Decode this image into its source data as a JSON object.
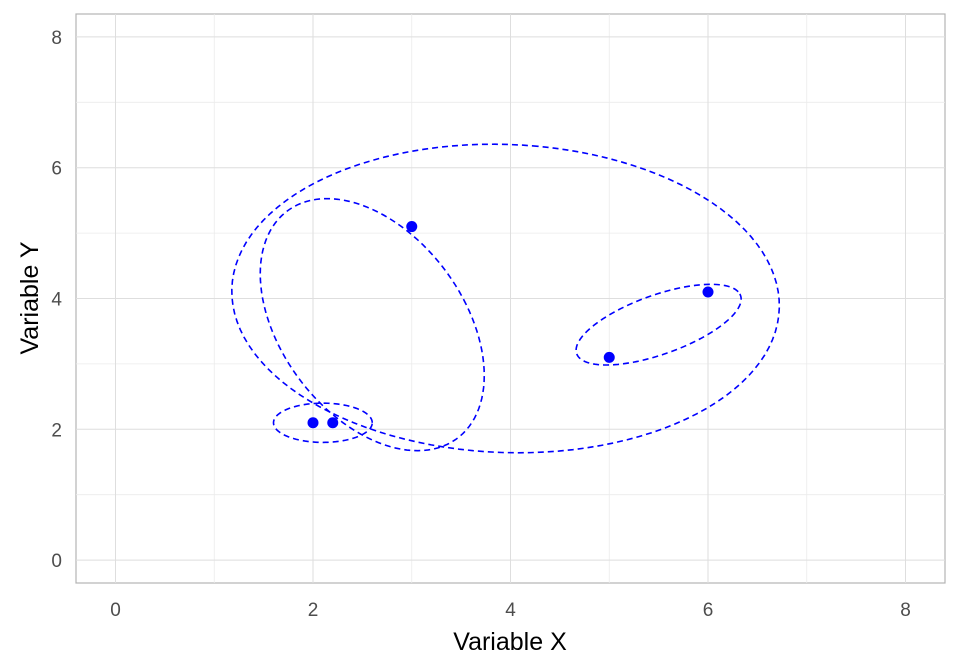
{
  "chart_data": {
    "type": "scatter",
    "title": "",
    "xlabel": "Variable X",
    "ylabel": "Variable Y",
    "xlim": [
      -0.4,
      8.4
    ],
    "ylim": [
      -0.35,
      8.35
    ],
    "xticks": [
      0,
      2,
      4,
      6,
      8
    ],
    "yticks": [
      0,
      2,
      4,
      6,
      8
    ],
    "x_tick_labels": [
      "0",
      "2",
      "4",
      "6",
      "8"
    ],
    "y_tick_labels": [
      "0",
      "2",
      "4",
      "6",
      "8"
    ],
    "grid": true,
    "legend": "none",
    "point_color": "#0000ff",
    "ellipse_color": "#0000ff",
    "ellipse_style": "dashed",
    "points": [
      {
        "x": 2.0,
        "y": 2.1
      },
      {
        "x": 2.2,
        "y": 2.1
      },
      {
        "x": 3.0,
        "y": 5.1
      },
      {
        "x": 5.0,
        "y": 3.1
      },
      {
        "x": 6.0,
        "y": 4.1
      }
    ],
    "ellipses": [
      {
        "cx": 2.1,
        "cy": 2.1,
        "rx": 0.5,
        "ry": 0.3,
        "angle_deg": 0
      },
      {
        "cx": 2.6,
        "cy": 3.6,
        "rx": 1.0,
        "ry": 2.0,
        "angle_deg": 18
      },
      {
        "cx": 5.5,
        "cy": 3.6,
        "rx": 0.95,
        "ry": 0.42,
        "angle_deg": 32
      },
      {
        "cx": 3.95,
        "cy": 4.0,
        "rx": 2.35,
        "ry": 2.78,
        "angle_deg": 82
      }
    ]
  }
}
